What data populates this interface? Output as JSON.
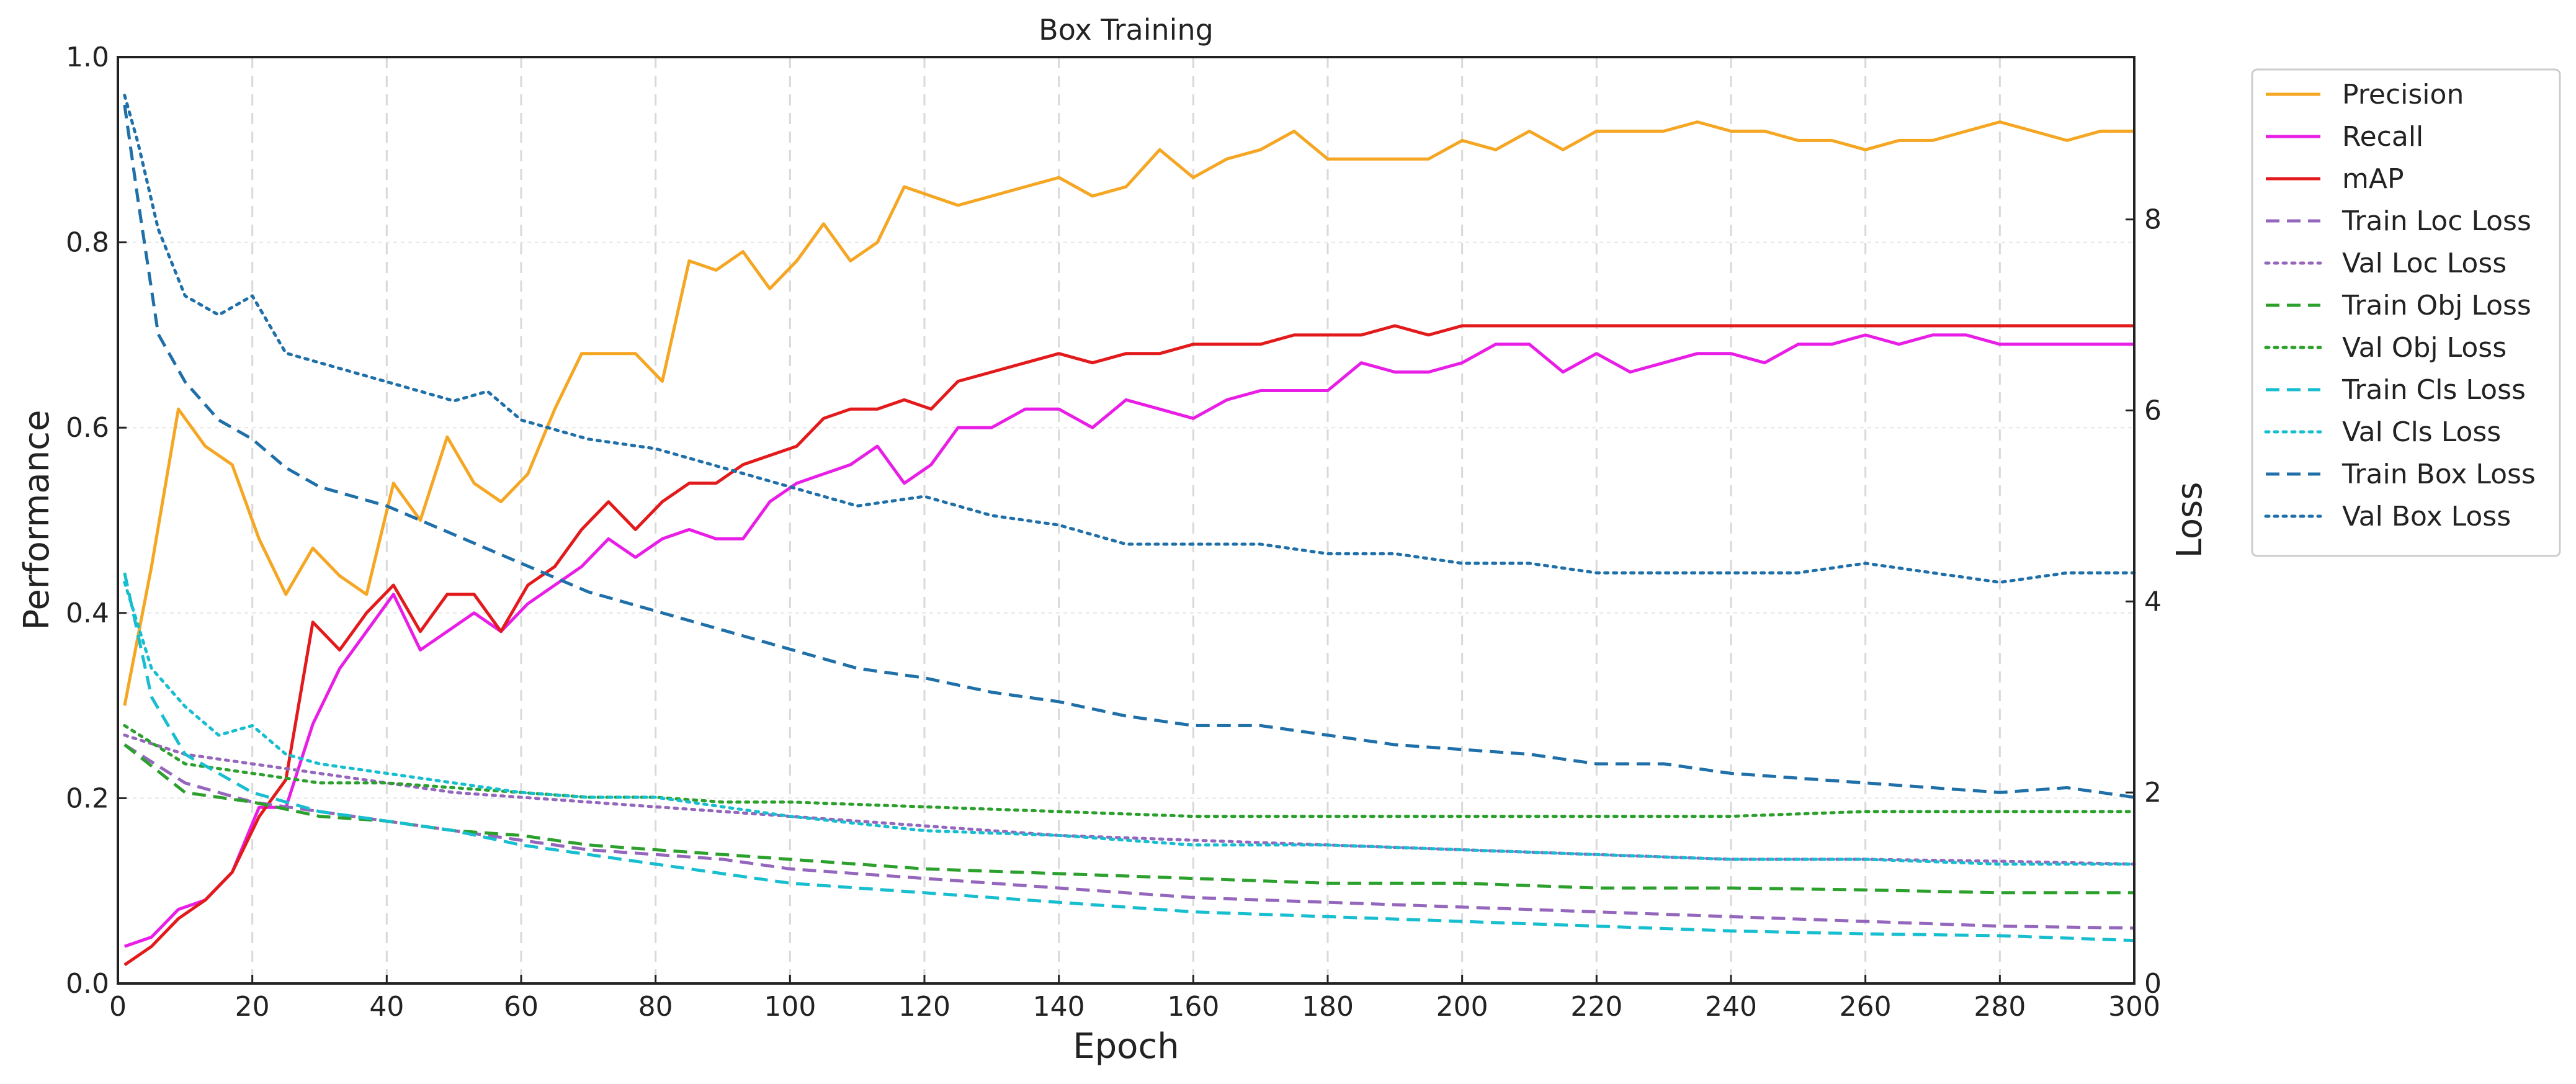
{
  "chart_data": {
    "type": "line",
    "title": "Box Training",
    "xlabel": "Epoch",
    "ylabel": "Performance",
    "y2label": "Loss",
    "xlim": [
      0,
      300
    ],
    "ylim": [
      0,
      1.0
    ],
    "y2lim": [
      0,
      9.7
    ],
    "xticks": [
      "0",
      "20",
      "40",
      "60",
      "80",
      "100",
      "120",
      "140",
      "160",
      "180",
      "200",
      "220",
      "240",
      "260",
      "280",
      "300"
    ],
    "yticks": [
      "0.0",
      "0.2",
      "0.4",
      "0.6",
      "0.8",
      "1.0"
    ],
    "y2ticks": [
      "0",
      "2",
      "4",
      "6",
      "8"
    ],
    "grid": true,
    "legend_position": "outside top-right",
    "series": [
      {
        "name": "Precision",
        "axis": "left",
        "color": "#f5a623",
        "dash": "solid",
        "x": [
          1,
          5,
          9,
          13,
          17,
          21,
          25,
          29,
          33,
          37,
          41,
          45,
          49,
          53,
          57,
          61,
          65,
          69,
          73,
          77,
          81,
          85,
          89,
          93,
          97,
          101,
          105,
          109,
          113,
          117,
          121,
          125,
          130,
          135,
          140,
          145,
          150,
          155,
          160,
          165,
          170,
          175,
          180,
          185,
          190,
          195,
          200,
          205,
          210,
          215,
          220,
          225,
          230,
          235,
          240,
          245,
          250,
          255,
          260,
          265,
          270,
          275,
          280,
          285,
          290,
          295,
          300
        ],
        "y": [
          0.3,
          0.45,
          0.62,
          0.58,
          0.56,
          0.48,
          0.42,
          0.47,
          0.44,
          0.42,
          0.54,
          0.5,
          0.59,
          0.54,
          0.52,
          0.55,
          0.62,
          0.68,
          0.68,
          0.68,
          0.65,
          0.78,
          0.77,
          0.79,
          0.75,
          0.78,
          0.82,
          0.78,
          0.8,
          0.86,
          0.85,
          0.84,
          0.85,
          0.86,
          0.87,
          0.85,
          0.86,
          0.9,
          0.87,
          0.89,
          0.9,
          0.92,
          0.89,
          0.89,
          0.89,
          0.89,
          0.91,
          0.9,
          0.92,
          0.9,
          0.92,
          0.92,
          0.92,
          0.93,
          0.92,
          0.92,
          0.91,
          0.91,
          0.9,
          0.91,
          0.91,
          0.92,
          0.93,
          0.92,
          0.91,
          0.92,
          0.92
        ]
      },
      {
        "name": "Recall",
        "axis": "left",
        "color": "#e91ee6",
        "dash": "solid",
        "x": [
          1,
          5,
          9,
          13,
          17,
          21,
          25,
          29,
          33,
          37,
          41,
          45,
          49,
          53,
          57,
          61,
          65,
          69,
          73,
          77,
          81,
          85,
          89,
          93,
          97,
          101,
          105,
          109,
          113,
          117,
          121,
          125,
          130,
          135,
          140,
          145,
          150,
          155,
          160,
          165,
          170,
          175,
          180,
          185,
          190,
          195,
          200,
          205,
          210,
          215,
          220,
          225,
          230,
          235,
          240,
          245,
          250,
          255,
          260,
          265,
          270,
          275,
          280,
          285,
          290,
          295,
          300
        ],
        "y": [
          0.04,
          0.05,
          0.08,
          0.09,
          0.12,
          0.19,
          0.19,
          0.28,
          0.34,
          0.38,
          0.42,
          0.36,
          0.38,
          0.4,
          0.38,
          0.41,
          0.43,
          0.45,
          0.48,
          0.46,
          0.48,
          0.49,
          0.48,
          0.48,
          0.52,
          0.54,
          0.55,
          0.56,
          0.58,
          0.54,
          0.56,
          0.6,
          0.6,
          0.62,
          0.62,
          0.6,
          0.63,
          0.62,
          0.61,
          0.63,
          0.64,
          0.64,
          0.64,
          0.67,
          0.66,
          0.66,
          0.67,
          0.69,
          0.69,
          0.66,
          0.68,
          0.66,
          0.67,
          0.68,
          0.68,
          0.67,
          0.69,
          0.69,
          0.7,
          0.69,
          0.7,
          0.7,
          0.69,
          0.69,
          0.69,
          0.69,
          0.69
        ]
      },
      {
        "name": "mAP",
        "axis": "left",
        "color": "#e31a1c",
        "dash": "solid",
        "x": [
          1,
          5,
          9,
          13,
          17,
          21,
          25,
          29,
          33,
          37,
          41,
          45,
          49,
          53,
          57,
          61,
          65,
          69,
          73,
          77,
          81,
          85,
          89,
          93,
          97,
          101,
          105,
          109,
          113,
          117,
          121,
          125,
          130,
          135,
          140,
          145,
          150,
          155,
          160,
          165,
          170,
          175,
          180,
          185,
          190,
          195,
          200,
          205,
          210,
          215,
          220,
          225,
          230,
          235,
          240,
          245,
          250,
          255,
          260,
          265,
          270,
          275,
          280,
          285,
          290,
          295,
          300
        ],
        "y": [
          0.02,
          0.04,
          0.07,
          0.09,
          0.12,
          0.18,
          0.22,
          0.39,
          0.36,
          0.4,
          0.43,
          0.38,
          0.42,
          0.42,
          0.38,
          0.43,
          0.45,
          0.49,
          0.52,
          0.49,
          0.52,
          0.54,
          0.54,
          0.56,
          0.57,
          0.58,
          0.61,
          0.62,
          0.62,
          0.63,
          0.62,
          0.65,
          0.66,
          0.67,
          0.68,
          0.67,
          0.68,
          0.68,
          0.69,
          0.69,
          0.69,
          0.7,
          0.7,
          0.7,
          0.71,
          0.7,
          0.71,
          0.71,
          0.71,
          0.71,
          0.71,
          0.71,
          0.71,
          0.71,
          0.71,
          0.71,
          0.71,
          0.71,
          0.71,
          0.71,
          0.71,
          0.71,
          0.71,
          0.71,
          0.71,
          0.71,
          0.71
        ]
      },
      {
        "name": "Train Loc Loss",
        "axis": "right",
        "color": "#9467bd",
        "dash": "dashed",
        "x": [
          1,
          10,
          20,
          30,
          40,
          50,
          60,
          70,
          80,
          90,
          100,
          120,
          140,
          160,
          180,
          200,
          220,
          240,
          260,
          280,
          300
        ],
        "y": [
          2.5,
          2.1,
          1.9,
          1.8,
          1.7,
          1.6,
          1.5,
          1.4,
          1.35,
          1.3,
          1.2,
          1.1,
          1.0,
          0.9,
          0.85,
          0.8,
          0.75,
          0.7,
          0.65,
          0.6,
          0.58
        ]
      },
      {
        "name": "Val Loc Loss",
        "axis": "right",
        "color": "#9467bd",
        "dash": "dotted",
        "x": [
          1,
          10,
          20,
          30,
          40,
          50,
          60,
          70,
          80,
          90,
          100,
          120,
          140,
          160,
          180,
          200,
          220,
          240,
          260,
          280,
          300
        ],
        "y": [
          2.6,
          2.4,
          2.3,
          2.2,
          2.1,
          2.0,
          1.95,
          1.9,
          1.85,
          1.8,
          1.75,
          1.65,
          1.55,
          1.5,
          1.45,
          1.4,
          1.35,
          1.3,
          1.3,
          1.28,
          1.25
        ]
      },
      {
        "name": "Train Obj Loss",
        "axis": "right",
        "color": "#2ca02c",
        "dash": "dashed",
        "x": [
          1,
          10,
          20,
          30,
          40,
          50,
          60,
          70,
          80,
          90,
          100,
          120,
          140,
          160,
          180,
          200,
          220,
          240,
          260,
          280,
          300
        ],
        "y": [
          2.5,
          2.0,
          1.9,
          1.75,
          1.7,
          1.6,
          1.55,
          1.45,
          1.4,
          1.35,
          1.3,
          1.2,
          1.15,
          1.1,
          1.05,
          1.05,
          1.0,
          1.0,
          0.98,
          0.95,
          0.95
        ]
      },
      {
        "name": "Val Obj Loss",
        "axis": "right",
        "color": "#2ca02c",
        "dash": "dotted",
        "x": [
          1,
          10,
          20,
          30,
          40,
          50,
          60,
          70,
          80,
          90,
          100,
          120,
          140,
          160,
          180,
          200,
          220,
          240,
          260,
          280,
          300
        ],
        "y": [
          2.7,
          2.3,
          2.2,
          2.1,
          2.1,
          2.05,
          2.0,
          1.95,
          1.95,
          1.9,
          1.9,
          1.85,
          1.8,
          1.75,
          1.75,
          1.75,
          1.75,
          1.75,
          1.8,
          1.8,
          1.8
        ]
      },
      {
        "name": "Train Cls Loss",
        "axis": "right",
        "color": "#17becf",
        "dash": "dashed",
        "x": [
          1,
          5,
          10,
          20,
          30,
          40,
          50,
          60,
          70,
          80,
          90,
          100,
          120,
          140,
          160,
          180,
          200,
          220,
          240,
          260,
          280,
          300
        ],
        "y": [
          4.3,
          3.0,
          2.4,
          2.0,
          1.8,
          1.7,
          1.6,
          1.45,
          1.35,
          1.25,
          1.15,
          1.05,
          0.95,
          0.85,
          0.75,
          0.7,
          0.65,
          0.6,
          0.55,
          0.52,
          0.5,
          0.45
        ]
      },
      {
        "name": "Val Cls Loss",
        "axis": "right",
        "color": "#17becf",
        "dash": "dotted",
        "x": [
          1,
          5,
          10,
          15,
          20,
          25,
          30,
          40,
          50,
          60,
          70,
          80,
          90,
          100,
          120,
          140,
          160,
          180,
          200,
          220,
          240,
          260,
          280,
          300
        ],
        "y": [
          4.2,
          3.3,
          2.9,
          2.6,
          2.7,
          2.4,
          2.3,
          2.2,
          2.1,
          2.0,
          1.95,
          1.95,
          1.85,
          1.75,
          1.6,
          1.55,
          1.45,
          1.45,
          1.4,
          1.35,
          1.3,
          1.3,
          1.25,
          1.25
        ]
      },
      {
        "name": "Train Box Loss",
        "axis": "right",
        "color": "#1f6fa8",
        "dash": "dashed",
        "x": [
          1,
          3,
          6,
          10,
          15,
          20,
          25,
          30,
          40,
          50,
          60,
          70,
          80,
          90,
          100,
          110,
          120,
          130,
          140,
          150,
          160,
          170,
          180,
          190,
          200,
          210,
          220,
          230,
          240,
          250,
          260,
          270,
          280,
          290,
          300
        ],
        "y": [
          9.2,
          8.2,
          6.8,
          6.3,
          5.9,
          5.7,
          5.4,
          5.2,
          5.0,
          4.7,
          4.4,
          4.1,
          3.9,
          3.7,
          3.5,
          3.3,
          3.2,
          3.05,
          2.95,
          2.8,
          2.7,
          2.7,
          2.6,
          2.5,
          2.45,
          2.4,
          2.3,
          2.3,
          2.2,
          2.15,
          2.1,
          2.05,
          2.0,
          2.05,
          1.95
        ]
      },
      {
        "name": "Val Box Loss",
        "axis": "right",
        "color": "#1f6fa8",
        "dash": "dotted",
        "x": [
          1,
          3,
          6,
          10,
          15,
          20,
          25,
          30,
          40,
          50,
          55,
          60,
          70,
          80,
          90,
          100,
          110,
          120,
          130,
          140,
          150,
          160,
          170,
          180,
          190,
          200,
          210,
          220,
          230,
          240,
          250,
          260,
          270,
          280,
          290,
          300
        ],
        "y": [
          9.3,
          8.8,
          7.9,
          7.2,
          7.0,
          7.2,
          6.6,
          6.5,
          6.3,
          6.1,
          6.2,
          5.9,
          5.7,
          5.6,
          5.4,
          5.2,
          5.0,
          5.1,
          4.9,
          4.8,
          4.6,
          4.6,
          4.6,
          4.5,
          4.5,
          4.4,
          4.4,
          4.3,
          4.3,
          4.3,
          4.3,
          4.4,
          4.3,
          4.2,
          4.3,
          4.3
        ]
      }
    ]
  }
}
